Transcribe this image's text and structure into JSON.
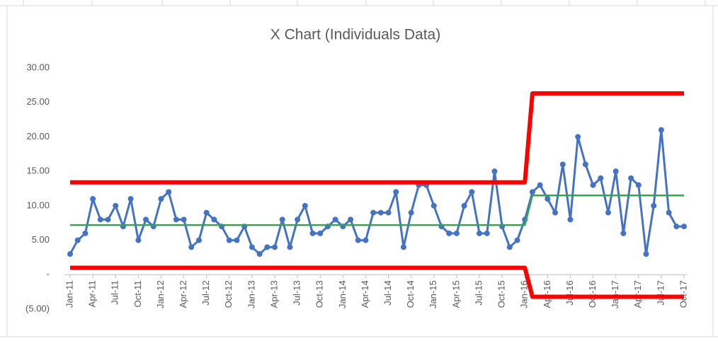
{
  "chart_data": {
    "type": "line",
    "title": "X Chart (Individuals Data)",
    "categories": [
      "Jan-11",
      null,
      null,
      "Apr-11",
      null,
      null,
      "Jul-11",
      null,
      null,
      "Oct-11",
      null,
      null,
      "Jan-12",
      null,
      null,
      "Apr-12",
      null,
      null,
      "Jul-12",
      null,
      null,
      "Oct-12",
      null,
      null,
      "Jan-13",
      null,
      null,
      "Apr-13",
      null,
      null,
      "Jul-13",
      null,
      null,
      "Oct-13",
      null,
      null,
      "Jan-14",
      null,
      null,
      "Apr-14",
      null,
      null,
      "Jul-14",
      null,
      null,
      "Oct-14",
      null,
      null,
      "Jan-15",
      null,
      null,
      "Apr-15",
      null,
      null,
      "Jul-15",
      null,
      null,
      "Oct-15",
      null,
      null,
      "Jan-16",
      null,
      null,
      "Apr-16",
      null,
      null,
      "Jul-16",
      null,
      null,
      "Oct-16",
      null,
      null,
      "Jan-17",
      null,
      null,
      "Apr-17",
      null,
      null,
      "Jul-17",
      null,
      null,
      "Oct-17"
    ],
    "series": [
      {
        "color": "#4472c4",
        "markers": true,
        "width": 3,
        "values": [
          3,
          5,
          6,
          11,
          8,
          8,
          10,
          7,
          11,
          5,
          8,
          7,
          11,
          12,
          8,
          8,
          4,
          5,
          9,
          8,
          7,
          5,
          5,
          7,
          4,
          3,
          4,
          4,
          8,
          4,
          8,
          10,
          6,
          6,
          7,
          8,
          7,
          8,
          5,
          5,
          9,
          9,
          9,
          12,
          4,
          9,
          13,
          13,
          10,
          7,
          6,
          6,
          10,
          12,
          6,
          6,
          15,
          7,
          4,
          5,
          8,
          12,
          13,
          11,
          9,
          16,
          8,
          20,
          16,
          13,
          14,
          9,
          15,
          6,
          14,
          13,
          3,
          10,
          21,
          9,
          7,
          7
        ]
      },
      {
        "color": "#ff0000",
        "markers": false,
        "width": 6,
        "values": [
          13.4,
          13.4,
          13.4,
          13.4,
          13.4,
          13.4,
          13.4,
          13.4,
          13.4,
          13.4,
          13.4,
          13.4,
          13.4,
          13.4,
          13.4,
          13.4,
          13.4,
          13.4,
          13.4,
          13.4,
          13.4,
          13.4,
          13.4,
          13.4,
          13.4,
          13.4,
          13.4,
          13.4,
          13.4,
          13.4,
          13.4,
          13.4,
          13.4,
          13.4,
          13.4,
          13.4,
          13.4,
          13.4,
          13.4,
          13.4,
          13.4,
          13.4,
          13.4,
          13.4,
          13.4,
          13.4,
          13.4,
          13.4,
          13.4,
          13.4,
          13.4,
          13.4,
          13.4,
          13.4,
          13.4,
          13.4,
          13.4,
          13.4,
          13.4,
          13.4,
          13.4,
          26.3,
          26.3,
          26.3,
          26.3,
          26.3,
          26.3,
          26.3,
          26.3,
          26.3,
          26.3,
          26.3,
          26.3,
          26.3,
          26.3,
          26.3,
          26.3,
          26.3,
          26.3,
          26.3,
          26.3,
          26.3
        ]
      },
      {
        "color": "#ff0000",
        "markers": false,
        "width": 6,
        "values": [
          1,
          1,
          1,
          1,
          1,
          1,
          1,
          1,
          1,
          1,
          1,
          1,
          1,
          1,
          1,
          1,
          1,
          1,
          1,
          1,
          1,
          1,
          1,
          1,
          1,
          1,
          1,
          1,
          1,
          1,
          1,
          1,
          1,
          1,
          1,
          1,
          1,
          1,
          1,
          1,
          1,
          1,
          1,
          1,
          1,
          1,
          1,
          1,
          1,
          1,
          1,
          1,
          1,
          1,
          1,
          1,
          1,
          1,
          1,
          1,
          1,
          -3.2,
          -3.2,
          -3.2,
          -3.2,
          -3.2,
          -3.2,
          -3.2,
          -3.2,
          -3.2,
          -3.2,
          -3.2,
          -3.2,
          -3.2,
          -3.2,
          -3.2,
          -3.2,
          -3.2,
          -3.2,
          -3.2,
          -3.2,
          -3.2
        ]
      },
      {
        "color": "#2ea84a",
        "markers": false,
        "width": 2.5,
        "values": [
          7.2,
          7.2,
          7.2,
          7.2,
          7.2,
          7.2,
          7.2,
          7.2,
          7.2,
          7.2,
          7.2,
          7.2,
          7.2,
          7.2,
          7.2,
          7.2,
          7.2,
          7.2,
          7.2,
          7.2,
          7.2,
          7.2,
          7.2,
          7.2,
          7.2,
          7.2,
          7.2,
          7.2,
          7.2,
          7.2,
          7.2,
          7.2,
          7.2,
          7.2,
          7.2,
          7.2,
          7.2,
          7.2,
          7.2,
          7.2,
          7.2,
          7.2,
          7.2,
          7.2,
          7.2,
          7.2,
          7.2,
          7.2,
          7.2,
          7.2,
          7.2,
          7.2,
          7.2,
          7.2,
          7.2,
          7.2,
          7.2,
          7.2,
          7.2,
          7.2,
          7.2,
          11.5,
          11.5,
          11.5,
          11.5,
          11.5,
          11.5,
          11.5,
          11.5,
          11.5,
          11.5,
          11.5,
          11.5,
          11.5,
          11.5,
          11.5,
          11.5,
          11.5,
          11.5,
          11.5,
          11.5,
          11.5
        ]
      }
    ],
    "ylim": [
      -5,
      30
    ],
    "yticks": [
      {
        "value": -5,
        "label": "(5.00)"
      },
      {
        "value": 0,
        "label": "-"
      },
      {
        "value": 5,
        "label": "5.00"
      },
      {
        "value": 10,
        "label": "10.00"
      },
      {
        "value": 15,
        "label": "15.00"
      },
      {
        "value": 20,
        "label": "20.00"
      },
      {
        "value": 25,
        "label": "25.00"
      },
      {
        "value": 30,
        "label": "30.00"
      }
    ],
    "grid": false
  }
}
